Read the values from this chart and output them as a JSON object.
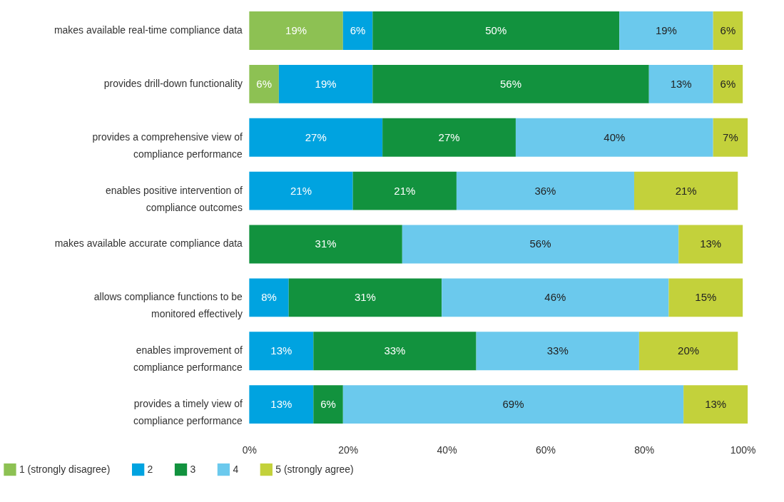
{
  "chart_data": {
    "type": "bar",
    "orientation": "horizontal",
    "stacked": true,
    "categories": [
      "makes available real-time compliance data",
      "provides drill-down functionality",
      "provides a comprehensive view of\ncompliance performance",
      "enables positive intervention of\ncompliance outcomes",
      "makes available accurate compliance data",
      "allows compliance functions to be\nmonitored effectively",
      "enables improvement of\ncompliance performance",
      "provides a timely view of\ncompliance performance"
    ],
    "series": [
      {
        "name": "1 (strongly disagree)",
        "color": "#8dc153",
        "values": [
          19,
          6,
          null,
          null,
          null,
          null,
          null,
          null
        ],
        "value_labels": [
          "19%",
          "6%",
          null,
          null,
          null,
          null,
          null,
          null
        ]
      },
      {
        "name": "2",
        "color": "#00a3e0",
        "values": [
          6,
          19,
          27,
          21,
          null,
          8,
          13,
          13
        ],
        "value_labels": [
          "6%",
          "19%",
          "27%",
          "21%",
          null,
          "8%",
          "13%",
          "13%"
        ]
      },
      {
        "name": "3",
        "color": "#12923e",
        "values": [
          50,
          56,
          27,
          21,
          31,
          31,
          33,
          6
        ],
        "value_labels": [
          "50%",
          "56%",
          "27%",
          "21%",
          "31%",
          "31%",
          "33%",
          "6%"
        ]
      },
      {
        "name": "4",
        "color": "#6bc9ed",
        "values": [
          19,
          13,
          40,
          36,
          56,
          46,
          33,
          69
        ],
        "value_labels": [
          "19%",
          "13%",
          "40%",
          "36%",
          "56%",
          "46%",
          "33%",
          "69%"
        ]
      },
      {
        "name": "5 (strongly agree)",
        "color": "#c3d13b",
        "values": [
          6,
          6,
          7,
          21,
          13,
          15,
          20,
          13
        ],
        "value_labels": [
          "6%",
          "6%",
          "7%",
          "21%",
          "13%",
          "15%",
          "20%",
          "13%"
        ]
      }
    ],
    "xlim": [
      0,
      101
    ],
    "xticks": [
      {
        "value": 0,
        "label": "0%"
      },
      {
        "value": 20,
        "label": "20%"
      },
      {
        "value": 40,
        "label": "40%"
      },
      {
        "value": 60,
        "label": "60%"
      },
      {
        "value": 80,
        "label": "80%"
      },
      {
        "value": 100,
        "label": "100%"
      }
    ],
    "grid": false,
    "legend": "bottom left"
  }
}
